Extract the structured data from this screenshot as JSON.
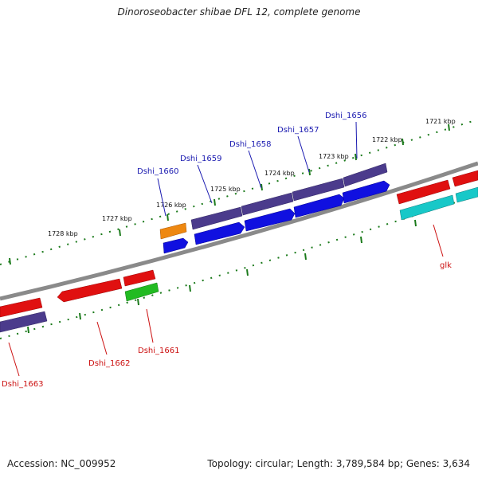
{
  "title": "Dinoroseobacter shibae DFL 12, complete genome",
  "footer": {
    "accession": "Accession: NC_009952",
    "info": "Topology: circular; Length: 3,789,584 bp; Genes: 3,634"
  },
  "colors": {
    "backbone": "#8a8a8a",
    "tick": "#1b7a1b",
    "label_upper": "#1a1ab0",
    "label_lower": "#cc1111"
  },
  "tick_labels": [
    "1721 kbp",
    "1722 kbp",
    "1723 kbp",
    "1724 kbp",
    "1725 kbp",
    "1726 kbp",
    "1727 kbp",
    "1728 kbp"
  ],
  "gene_labels": {
    "dshi_1656": "Dshi_1656",
    "dshi_1657": "Dshi_1657",
    "dshi_1658": "Dshi_1658",
    "dshi_1659": "Dshi_1659",
    "dshi_1660": "Dshi_1660",
    "glk": "glk",
    "dshi_1661": "Dshi_1661",
    "dshi_1662": "Dshi_1662",
    "dshi_1663": "Dshi_1663"
  }
}
